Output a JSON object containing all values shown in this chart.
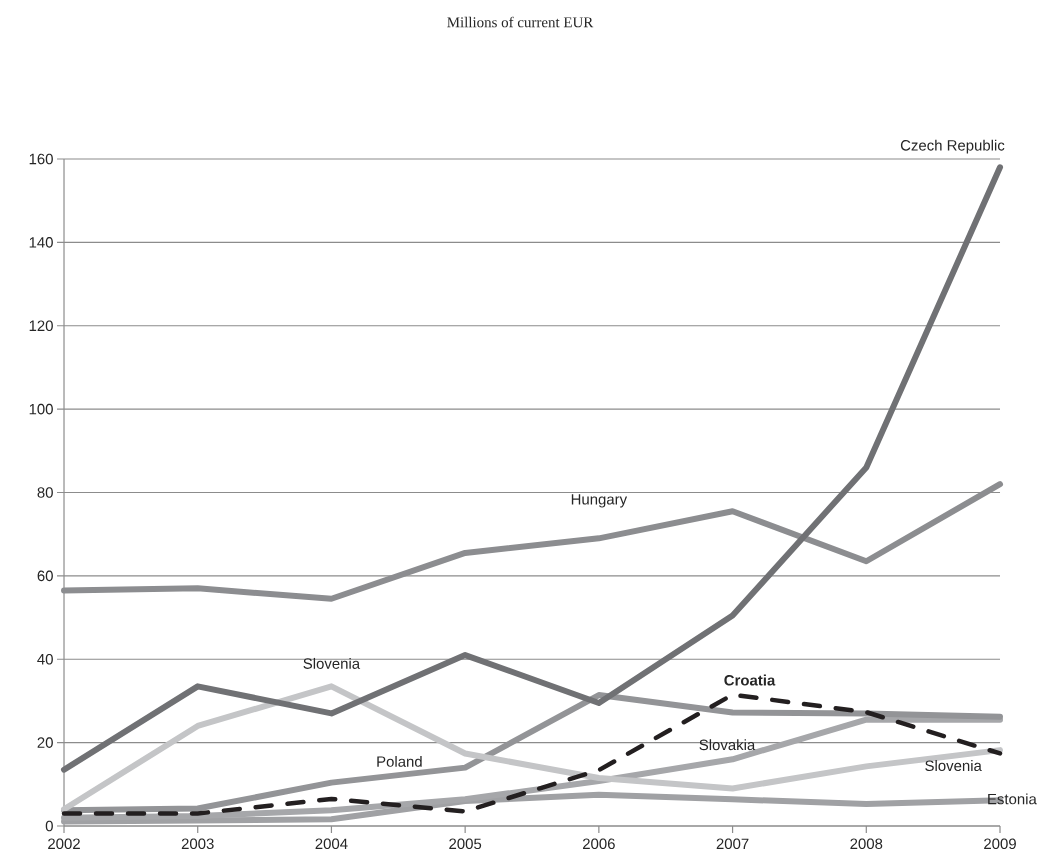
{
  "chart_data": {
    "type": "line",
    "title": "Millions of current EUR",
    "x": [
      2002,
      2003,
      2004,
      2005,
      2006,
      2007,
      2008,
      2009
    ],
    "xlim": [
      2002,
      2009
    ],
    "xticks": [
      2002,
      2003,
      2004,
      2005,
      2006,
      2007,
      2008,
      2009
    ],
    "ylim": [
      0,
      160
    ],
    "yticks": [
      0,
      20,
      40,
      60,
      80,
      100,
      120,
      140,
      160
    ],
    "grid": "y",
    "legend": false,
    "marker": "none",
    "line_style": "solid",
    "series": [
      {
        "name": "Estonia",
        "color": "#a0a1a4",
        "values": [
          1.1,
          1.3,
          1.6,
          6,
          7.5,
          6.4,
          5.3,
          6.2
        ]
      },
      {
        "name": "Slovakia",
        "color": "#a6a7aa",
        "values": [
          2,
          2.4,
          3.8,
          6.4,
          10.8,
          16,
          25.5,
          25.5
        ]
      },
      {
        "name": "Poland",
        "color": "#939497",
        "values": [
          3.8,
          4.2,
          10.4,
          14,
          31.4,
          27.2,
          27,
          26.2
        ]
      },
      {
        "name": "Slovenia",
        "color": "#c4c5c7",
        "values": [
          4,
          24,
          33.5,
          17.4,
          11.5,
          9,
          14.3,
          18.2
        ]
      },
      {
        "name": "Hungary",
        "color": "#8c8d90",
        "values": [
          56.5,
          57,
          54.5,
          65.5,
          69,
          75.5,
          63.5,
          82
        ]
      },
      {
        "name": "Czech Republic",
        "color": "#707174",
        "values": [
          13.5,
          33.5,
          27,
          41,
          29.5,
          50.5,
          86,
          158
        ]
      },
      {
        "name": "**Croatia**",
        "color": "#231f20",
        "line_style": "dashed",
        "values": [
          3,
          3,
          6.5,
          3.5,
          13.4,
          31.5,
          27.3,
          17.4
        ]
      }
    ],
    "annotations": [
      "Slovenia"
    ]
  }
}
